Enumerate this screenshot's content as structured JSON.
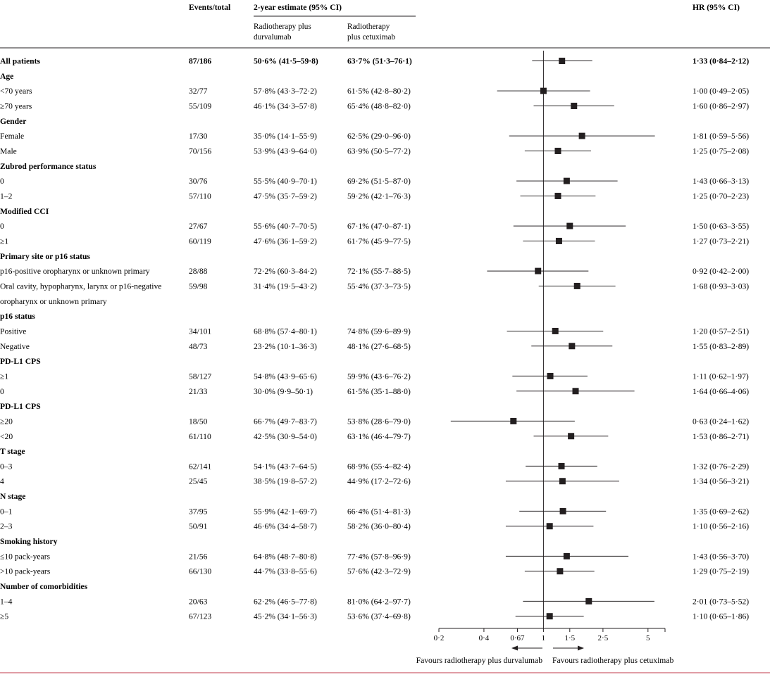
{
  "header": {
    "events": "Events/total",
    "estimate": "2-year estimate (95% CI)",
    "arm1_line1": "Radiotherapy plus",
    "arm1_line2": "durvalumab",
    "arm2_line1": "Radiotherapy",
    "arm2_line2": "plus cetuximab",
    "hr": "HR (95% CI)"
  },
  "footer": {
    "favours_left": "Favours radiotherapy plus durvalumab",
    "favours_right": "Favours radiotherapy plus cetuximab"
  },
  "colors": {
    "ink": "#231f20",
    "rule": "#c23b4b"
  },
  "chart_data": {
    "type": "forest",
    "xscale": "log",
    "xlim": [
      0.2,
      6.5
    ],
    "reference_line": 1,
    "xticks": [
      0.2,
      0.4,
      0.67,
      1,
      1.5,
      2.5,
      5
    ],
    "xtick_labels": [
      "0·2",
      "0·4",
      "0·67",
      "1",
      "1·5",
      "2·5",
      "5"
    ],
    "rows": [
      {
        "label": "All patients",
        "bold": true,
        "events": "87/186",
        "arm1": "50·6% (41·5–59·8)",
        "arm2": "63·7% (51·3–76·1)",
        "hr_text": "1·33 (0·84–2·12)",
        "hr": 1.33,
        "lo": 0.84,
        "hi": 2.12
      },
      {
        "label": "Age",
        "header": true
      },
      {
        "label": "<70 years",
        "events": "32/77",
        "arm1": "57·8% (43·3–72·2)",
        "arm2": "61·5% (42·8–80·2)",
        "hr_text": "1·00 (0·49–2·05)",
        "hr": 1.0,
        "lo": 0.49,
        "hi": 2.05
      },
      {
        "label": "≥70 years",
        "events": "55/109",
        "arm1": "46·1% (34·3–57·8)",
        "arm2": "65·4% (48·8–82·0)",
        "hr_text": "1·60 (0·86–2·97)",
        "hr": 1.6,
        "lo": 0.86,
        "hi": 2.97
      },
      {
        "label": "Gender",
        "header": true
      },
      {
        "label": "Female",
        "events": "17/30",
        "arm1": "35·0% (14·1–55·9)",
        "arm2": "62·5% (29·0–96·0)",
        "hr_text": "1·81 (0·59–5·56)",
        "hr": 1.81,
        "lo": 0.59,
        "hi": 5.56
      },
      {
        "label": "Male",
        "events": "70/156",
        "arm1": "53·9% (43·9–64·0)",
        "arm2": "63·9% (50·5–77·2)",
        "hr_text": "1·25 (0·75–2·08)",
        "hr": 1.25,
        "lo": 0.75,
        "hi": 2.08
      },
      {
        "label": "Zubrod performance status",
        "header": true
      },
      {
        "label": "0",
        "events": "30/76",
        "arm1": "55·5% (40·9–70·1)",
        "arm2": "69·2% (51·5–87·0)",
        "hr_text": "1·43 (0·66–3·13)",
        "hr": 1.43,
        "lo": 0.66,
        "hi": 3.13
      },
      {
        "label": "1–2",
        "events": "57/110",
        "arm1": "47·5% (35·7–59·2)",
        "arm2": "59·2% (42·1–76·3)",
        "hr_text": "1·25 (0·70–2·23)",
        "hr": 1.25,
        "lo": 0.7,
        "hi": 2.23
      },
      {
        "label": "Modified CCI",
        "header": true
      },
      {
        "label": "0",
        "events": "27/67",
        "arm1": "55·6% (40·7–70·5)",
        "arm2": "67·1% (47·0–87·1)",
        "hr_text": "1·50 (0·63–3·55)",
        "hr": 1.5,
        "lo": 0.63,
        "hi": 3.55
      },
      {
        "label": "≥1",
        "events": "60/119",
        "arm1": "47·6% (36·1–59·2)",
        "arm2": "61·7% (45·9–77·5)",
        "hr_text": "1·27 (0·73–2·21)",
        "hr": 1.27,
        "lo": 0.73,
        "hi": 2.21
      },
      {
        "label": "Primary site or p16 status",
        "header": true
      },
      {
        "label": "p16-positive oropharynx or unknown primary",
        "events": "28/88",
        "arm1": "72·2% (60·3–84·2)",
        "arm2": "72·1% (55·7–88·5)",
        "hr_text": "0·92 (0·42–2·00)",
        "hr": 0.92,
        "lo": 0.42,
        "hi": 2.0
      },
      {
        "label": "Oral cavity, hypopharynx, larynx or p16-negative",
        "events": "59/98",
        "arm1": "31·4% (19·5–43·2)",
        "arm2": "55·4% (37·3–73·5)",
        "hr_text": "1·68 (0·93–3·03)",
        "hr": 1.68,
        "lo": 0.93,
        "hi": 3.03
      },
      {
        "label": "oropharynx or unknown primary",
        "cont": true
      },
      {
        "label": "p16 status",
        "header": true
      },
      {
        "label": "Positive",
        "events": "34/101",
        "arm1": "68·8% (57·4–80·1)",
        "arm2": "74·8% (59·6–89·9)",
        "hr_text": "1·20 (0·57–2·51)",
        "hr": 1.2,
        "lo": 0.57,
        "hi": 2.51
      },
      {
        "label": "Negative",
        "events": "48/73",
        "arm1": "23·2% (10·1–36·3)",
        "arm2": "48·1% (27·6–68·5)",
        "hr_text": "1·55 (0·83–2·89)",
        "hr": 1.55,
        "lo": 0.83,
        "hi": 2.89
      },
      {
        "label": "PD-L1 CPS",
        "header": true
      },
      {
        "label": "≥1",
        "events": "58/127",
        "arm1": "54·8% (43·9–65·6)",
        "arm2": "59·9% (43·6–76·2)",
        "hr_text": "1·11 (0·62–1·97)",
        "hr": 1.11,
        "lo": 0.62,
        "hi": 1.97
      },
      {
        "label": "0",
        "events": "21/33",
        "arm1": "30·0% (9·9–50·1)",
        "arm2": "61·5% (35·1–88·0)",
        "hr_text": "1·64 (0·66–4·06)",
        "hr": 1.64,
        "lo": 0.66,
        "hi": 4.06
      },
      {
        "label": "PD-L1 CPS",
        "header": true
      },
      {
        "label": "≥20",
        "events": "18/50",
        "arm1": "66·7% (49·7–83·7)",
        "arm2": "53·8% (28·6–79·0)",
        "hr_text": "0·63 (0·24–1·62)",
        "hr": 0.63,
        "lo": 0.24,
        "hi": 1.62
      },
      {
        "label": "<20",
        "events": "61/110",
        "arm1": "42·5% (30·9–54·0)",
        "arm2": "63·1% (46·4–79·7)",
        "hr_text": "1·53 (0·86–2·71)",
        "hr": 1.53,
        "lo": 0.86,
        "hi": 2.71
      },
      {
        "label": "T stage",
        "header": true
      },
      {
        "label": "0–3",
        "events": "62/141",
        "arm1": "54·1% (43·7–64·5)",
        "arm2": "68·9% (55·4–82·4)",
        "hr_text": "1·32 (0·76–2·29)",
        "hr": 1.32,
        "lo": 0.76,
        "hi": 2.29
      },
      {
        "label": "4",
        "events": "25/45",
        "arm1": "38·5% (19·8–57·2)",
        "arm2": "44·9% (17·2–72·6)",
        "hr_text": "1·34 (0·56–3·21)",
        "hr": 1.34,
        "lo": 0.56,
        "hi": 3.21
      },
      {
        "label": "N stage",
        "header": true
      },
      {
        "label": "0–1",
        "events": "37/95",
        "arm1": "55·9% (42·1–69·7)",
        "arm2": "66·4% (51·4–81·3)",
        "hr_text": "1·35 (0·69–2·62)",
        "hr": 1.35,
        "lo": 0.69,
        "hi": 2.62
      },
      {
        "label": "2–3",
        "events": "50/91",
        "arm1": "46·6% (34·4–58·7)",
        "arm2": "58·2% (36·0–80·4)",
        "hr_text": "1·10 (0·56–2·16)",
        "hr": 1.1,
        "lo": 0.56,
        "hi": 2.16
      },
      {
        "label": "Smoking history",
        "header": true
      },
      {
        "label": "≤10 pack-years",
        "events": "21/56",
        "arm1": "64·8% (48·7–80·8)",
        "arm2": "77·4% (57·8–96·9)",
        "hr_text": "1·43 (0·56–3·70)",
        "hr": 1.43,
        "lo": 0.56,
        "hi": 3.7
      },
      {
        "label": ">10 pack-years",
        "events": "66/130",
        "arm1": "44·7% (33·8–55·6)",
        "arm2": "57·6% (42·3–72·9)",
        "hr_text": "1·29 (0·75–2·19)",
        "hr": 1.29,
        "lo": 0.75,
        "hi": 2.19
      },
      {
        "label": "Number of comorbidities",
        "header": true
      },
      {
        "label": "1–4",
        "events": "20/63",
        "arm1": "62·2% (46·5–77·8)",
        "arm2": "81·0% (64·2–97·7)",
        "hr_text": "2·01 (0·73–5·52)",
        "hr": 2.01,
        "lo": 0.73,
        "hi": 5.52
      },
      {
        "label": "≥5",
        "events": "67/123",
        "arm1": "45·2% (34·1–56·3)",
        "arm2": "53·6% (37·4–69·8)",
        "hr_text": "1·10 (0·65–1·86)",
        "hr": 1.1,
        "lo": 0.65,
        "hi": 1.86
      }
    ]
  }
}
